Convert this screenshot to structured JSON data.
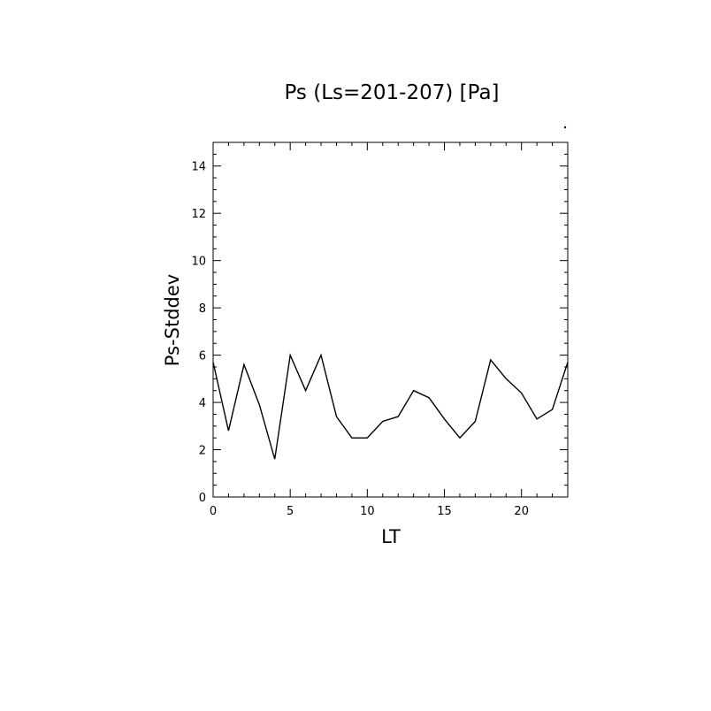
{
  "chart_data": {
    "type": "line",
    "title": "Ps (Ls=201-207) [Pa]",
    "xlabel": "LT",
    "ylabel": "Ps-Stddev",
    "xlim": [
      0,
      23
    ],
    "ylim": [
      0,
      15
    ],
    "x_ticks": [
      0,
      5,
      10,
      15,
      20
    ],
    "y_ticks": [
      0,
      2,
      4,
      6,
      8,
      10,
      12,
      14
    ],
    "x_tick_labels": [
      "0",
      "5",
      "10",
      "15",
      "20"
    ],
    "y_tick_labels": [
      "0",
      "2",
      "4",
      "6",
      "8",
      "10",
      "12",
      "14"
    ],
    "grid": false,
    "line_color": "#000000",
    "series": [
      {
        "x": [
          0,
          1,
          2,
          3,
          4,
          5,
          6,
          7,
          8,
          9,
          10,
          11,
          12,
          13,
          14,
          15,
          16,
          17,
          18,
          19,
          20,
          21,
          22,
          23
        ],
        "values": [
          5.7,
          2.8,
          5.6,
          3.9,
          1.6,
          6.0,
          4.5,
          6.0,
          3.4,
          2.5,
          2.5,
          3.2,
          3.4,
          4.5,
          4.2,
          3.3,
          2.5,
          3.2,
          5.8,
          5.0,
          4.4,
          3.3,
          3.7,
          5.7
        ]
      }
    ]
  }
}
